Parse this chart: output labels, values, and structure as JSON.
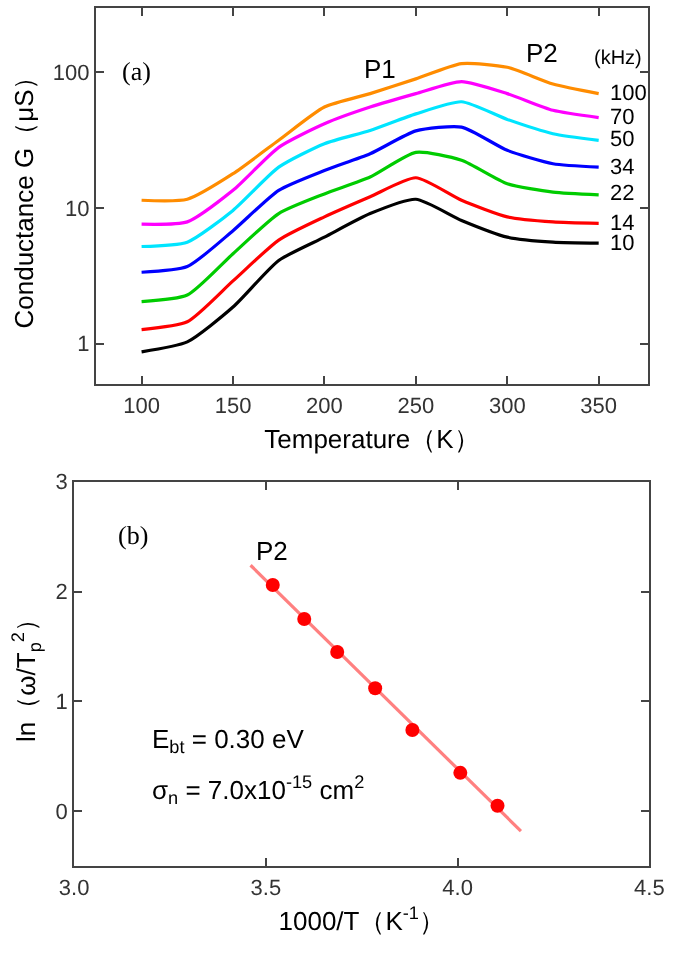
{
  "chart_data": [
    {
      "type": "line",
      "xlabel": "Temperature（K）",
      "ylabel": "Conductance G（μS）",
      "legend_title": "(kHz)",
      "annotations": [
        "(a)",
        "P1",
        "P2"
      ],
      "log": "y",
      "legend": false,
      "xlim": [
        75,
        377
      ],
      "ylim": [
        0.5,
        300
      ],
      "xticks": [
        100,
        150,
        200,
        250,
        300,
        350
      ],
      "yticks": [
        1,
        10,
        100
      ],
      "x": [
        100,
        125,
        150,
        175,
        200,
        225,
        250,
        275,
        300,
        325,
        350
      ],
      "series": [
        {
          "name": "100",
          "color": "#ff8c00",
          "values": [
            11.4,
            11.6,
            17.9,
            31.6,
            55.5,
            69.7,
            89.5,
            116,
            109,
            82,
            69.7
          ]
        },
        {
          "name": "70",
          "color": "#ff00ff",
          "values": [
            7.6,
            7.9,
            13.5,
            28,
            41.8,
            55.5,
            69.7,
            85.5,
            69.7,
            52.5,
            46.4
          ]
        },
        {
          "name": "50",
          "color": "#00e5ff",
          "values": [
            5.2,
            5.6,
            9.6,
            20,
            29.8,
            37.3,
            49.4,
            60.7,
            45,
            35.3,
            31.5
          ]
        },
        {
          "name": "34",
          "color": "#0000ff",
          "values": [
            3.36,
            3.7,
            6.8,
            13.5,
            18.9,
            25.1,
            37,
            39.5,
            26.6,
            21.2,
            20
          ]
        },
        {
          "name": "22",
          "color": "#00cc00",
          "values": [
            2.04,
            2.28,
            4.6,
            9.1,
            12.7,
            16.9,
            25.7,
            22.5,
            15.1,
            13.1,
            12.5
          ]
        },
        {
          "name": "14",
          "color": "#ff0000",
          "values": [
            1.27,
            1.45,
            2.9,
            5.8,
            8.6,
            12.1,
            16.7,
            11.4,
            8.6,
            7.9,
            7.7
          ]
        },
        {
          "name": "10",
          "color": "#000000",
          "values": [
            0.87,
            1.03,
            1.86,
            4.1,
            6.1,
            9.1,
            11.6,
            8.1,
            6.1,
            5.6,
            5.5
          ]
        }
      ]
    },
    {
      "type": "scatter",
      "xlabel": "1000/T（K$^{-1}$）",
      "ylabel": "ln（ω/T$_{p}$$^{2}$）",
      "annotations": [
        "(b)",
        "P2",
        "E$_{bt}$ = 0.30 eV",
        "σ$_{n}$ = 7.0x10$^{-15}$ cm$^{2}$"
      ],
      "legend": false,
      "xlim": [
        3.0,
        4.5
      ],
      "ylim": [
        -0.5,
        3
      ],
      "xticks": [
        {
          "value": 3,
          "label": "3.0"
        },
        {
          "value": 3.5,
          "label": "3.5"
        },
        {
          "value": 4,
          "label": "4.0"
        },
        {
          "value": 4.5,
          "label": "4.5"
        }
      ],
      "yticks": [
        0,
        1,
        2,
        3
      ],
      "series": [
        {
          "type": "line",
          "color": "#ff8080",
          "marker": "none",
          "x": [
            3.46,
            4.165
          ],
          "values": [
            2.24,
            -0.18
          ]
        },
        {
          "type": "scatter",
          "color": "#ff0000",
          "marker": "circle",
          "x": [
            3.518,
            3.6,
            3.686,
            3.785,
            3.882,
            4.007,
            4.104
          ],
          "values": [
            2.06,
            1.75,
            1.45,
            1.12,
            0.74,
            0.35,
            0.05
          ]
        }
      ]
    }
  ]
}
